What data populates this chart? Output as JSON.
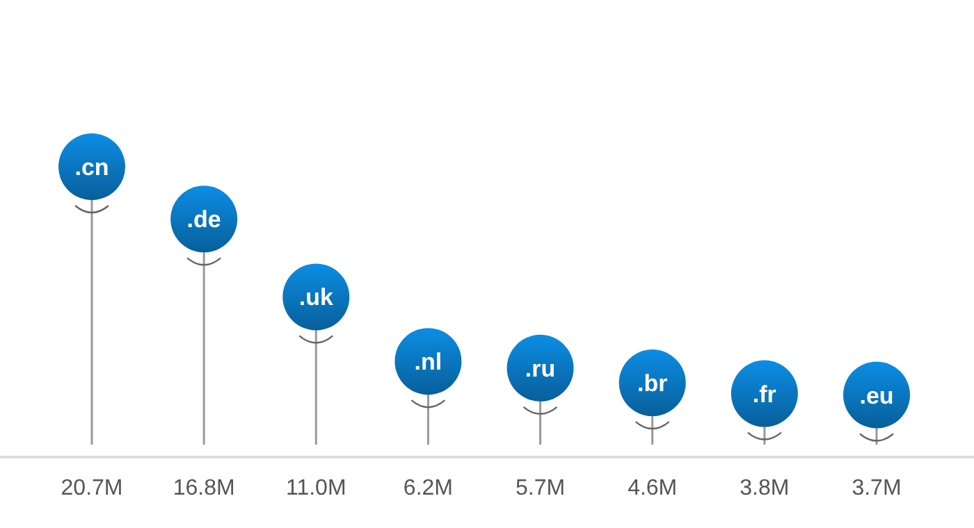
{
  "chart_data": {
    "type": "lollipop",
    "categories": [
      ".cn",
      ".de",
      ".uk",
      ".nl",
      ".ru",
      ".br",
      ".fr",
      ".eu"
    ],
    "values": [
      20.7,
      16.8,
      11.0,
      6.2,
      5.7,
      4.6,
      3.8,
      3.7
    ],
    "value_labels": [
      "20.7M",
      "16.8M",
      "11.0M",
      "6.2M",
      "5.7M",
      "4.6M",
      "3.8M",
      "3.7M"
    ],
    "color": "#0a72b8"
  }
}
